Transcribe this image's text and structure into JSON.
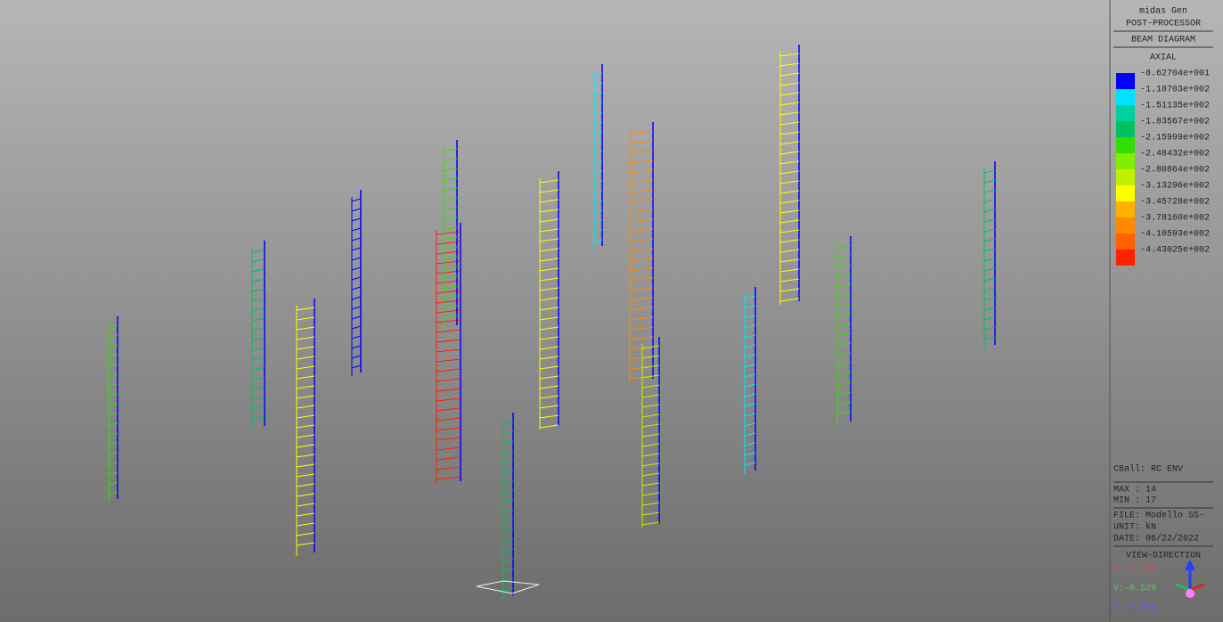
{
  "header": {
    "app": "midas Gen",
    "mode": "POST-PROCESSOR",
    "diagram": "BEAM DIAGRAM"
  },
  "legend": {
    "title": "AXIAL",
    "items": [
      {
        "label": "-8.62704e+001",
        "color": "#0000ff"
      },
      {
        "label": "-1.18703e+002",
        "color": "#00e5ff"
      },
      {
        "label": "-1.51135e+002",
        "color": "#00d0a0"
      },
      {
        "label": "-1.83567e+002",
        "color": "#00c060"
      },
      {
        "label": "-2.15999e+002",
        "color": "#30e000"
      },
      {
        "label": "-2.48432e+002",
        "color": "#80f000"
      },
      {
        "label": "-2.80864e+002",
        "color": "#c0f000"
      },
      {
        "label": "-3.13296e+002",
        "color": "#ffff00"
      },
      {
        "label": "-3.45728e+002",
        "color": "#ffb000"
      },
      {
        "label": "-3.78160e+002",
        "color": "#ff8a00"
      },
      {
        "label": "-4.10593e+002",
        "color": "#ff6000"
      },
      {
        "label": "-4.43025e+002",
        "color": "#ff2000"
      }
    ]
  },
  "info": {
    "combination": "CBall: RC ENV",
    "max": "MAX : 14",
    "min": "MIN : 17",
    "file": "FILE: Modello SS-",
    "unit": "UNIT: kN",
    "date": "DATE: 06/22/2022"
  },
  "view": {
    "title": "VIEW-DIRECTION",
    "x": "X:-0.769",
    "y": "Y:-0.529",
    "z": "Z: 0.358"
  }
}
